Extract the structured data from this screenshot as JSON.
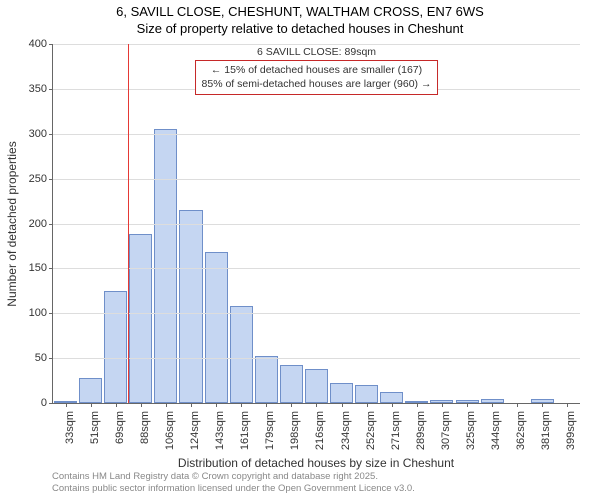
{
  "title_line1": "6, SAVILL CLOSE, CHESHUNT, WALTHAM CROSS, EN7 6WS",
  "title_line2": "Size of property relative to detached houses in Cheshunt",
  "chart": {
    "type": "histogram",
    "ylabel": "Number of detached properties",
    "xlabel": "Distribution of detached houses by size in Cheshunt",
    "ylim_max": 400,
    "ytick_step": 50,
    "background_color": "#ffffff",
    "grid_color": "#dddddd",
    "axis_color": "#666666",
    "bar_fill": "#c5d6f2",
    "bar_stroke": "#6f8fc9",
    "marker_color": "#e53935",
    "annotation_border": "#c62828",
    "bins": [
      {
        "label": "33sqm",
        "value": 2
      },
      {
        "label": "51sqm",
        "value": 28
      },
      {
        "label": "69sqm",
        "value": 125
      },
      {
        "label": "88sqm",
        "value": 188
      },
      {
        "label": "106sqm",
        "value": 305
      },
      {
        "label": "124sqm",
        "value": 215
      },
      {
        "label": "143sqm",
        "value": 168
      },
      {
        "label": "161sqm",
        "value": 108
      },
      {
        "label": "179sqm",
        "value": 52
      },
      {
        "label": "198sqm",
        "value": 42
      },
      {
        "label": "216sqm",
        "value": 38
      },
      {
        "label": "234sqm",
        "value": 22
      },
      {
        "label": "252sqm",
        "value": 20
      },
      {
        "label": "271sqm",
        "value": 12
      },
      {
        "label": "289sqm",
        "value": 2
      },
      {
        "label": "307sqm",
        "value": 3
      },
      {
        "label": "325sqm",
        "value": 3
      },
      {
        "label": "344sqm",
        "value": 4
      },
      {
        "label": "362sqm",
        "value": 0
      },
      {
        "label": "381sqm",
        "value": 5
      },
      {
        "label": "399sqm",
        "value": 0
      }
    ],
    "marker_bin_index": 3,
    "annotation_text_top": "6 SAVILL CLOSE: 89sqm",
    "annotation_text_l1": "← 15% of detached houses are smaller (167)",
    "annotation_text_l2": "85% of semi-detached houses are larger (960) →"
  },
  "footer_l1": "Contains HM Land Registry data © Crown copyright and database right 2025.",
  "footer_l2": "Contains public sector information licensed under the Open Government Licence v3.0."
}
